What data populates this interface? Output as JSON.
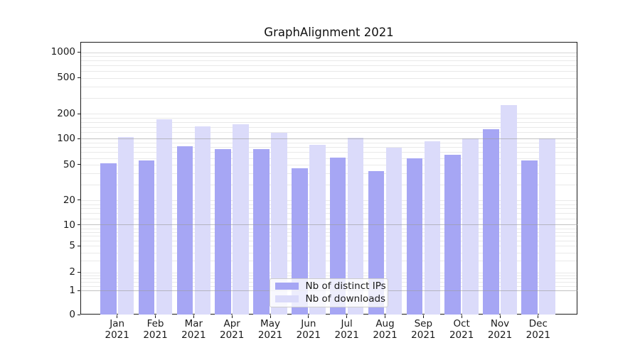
{
  "title": "GraphAlignment 2021",
  "chart_data": {
    "type": "bar",
    "title": "GraphAlignment 2021",
    "categories": [
      "Jan 2021",
      "Feb 2021",
      "Mar 2021",
      "Apr 2021",
      "May 2021",
      "Jun 2021",
      "Jul 2021",
      "Aug 2021",
      "Sep 2021",
      "Oct 2021",
      "Nov 2021",
      "Dec 2021"
    ],
    "series": [
      {
        "name": "Nb of distinct IPs",
        "color": "#a6a6f4",
        "values": [
          52,
          56,
          82,
          76,
          75,
          45,
          60,
          42,
          59,
          65,
          130,
          56
        ]
      },
      {
        "name": "Nb of downloads",
        "color": "#dbdbfa",
        "values": [
          105,
          170,
          140,
          150,
          118,
          84,
          102,
          78,
          93,
          100,
          250,
          100
        ]
      }
    ],
    "xlabel": "",
    "ylabel": "",
    "yscale": "symlog",
    "y_ticks": [
      0,
      1,
      2,
      5,
      10,
      20,
      50,
      100,
      200,
      500,
      1000
    ],
    "ylim": [
      0,
      1300
    ],
    "grid": true,
    "legend_position": "lower center"
  }
}
